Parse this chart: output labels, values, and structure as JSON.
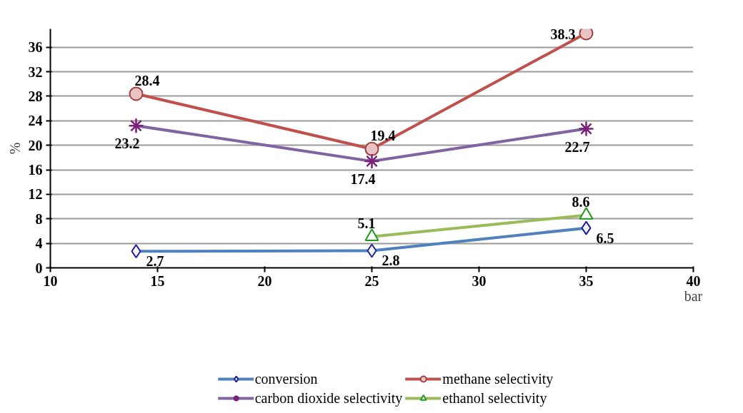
{
  "chart_data": {
    "type": "line",
    "xlabel": "bar",
    "ylabel": "%",
    "xlim": [
      10,
      40
    ],
    "xticks": [
      10,
      15,
      20,
      25,
      30,
      35,
      40
    ],
    "ylim": [
      0,
      39
    ],
    "yticks": [
      0,
      4,
      8,
      12,
      16,
      20,
      24,
      28,
      32,
      36
    ],
    "grid": "y",
    "legend": "bottom",
    "data_labels": true,
    "line_style": "solid",
    "series": [
      {
        "name": "conversion",
        "color": "#4f81bd",
        "marker": "diamond",
        "x": [
          14,
          25,
          35
        ],
        "values": [
          2.7,
          2.8,
          6.5
        ]
      },
      {
        "name": "methane selectivity",
        "color": "#c0504d",
        "marker": "circle",
        "x": [
          14,
          25,
          35
        ],
        "values": [
          28.4,
          19.4,
          38.3
        ]
      },
      {
        "name": "carbon dioxide selectivity",
        "color": "#8064a2",
        "marker": "cross",
        "x": [
          14,
          25,
          35
        ],
        "values": [
          23.2,
          17.4,
          22.7
        ]
      },
      {
        "name": "ethanol selectivity",
        "color": "#9bbb59",
        "marker": "triangle",
        "x": [
          25,
          35
        ],
        "values": [
          5.1,
          8.6
        ]
      }
    ]
  }
}
